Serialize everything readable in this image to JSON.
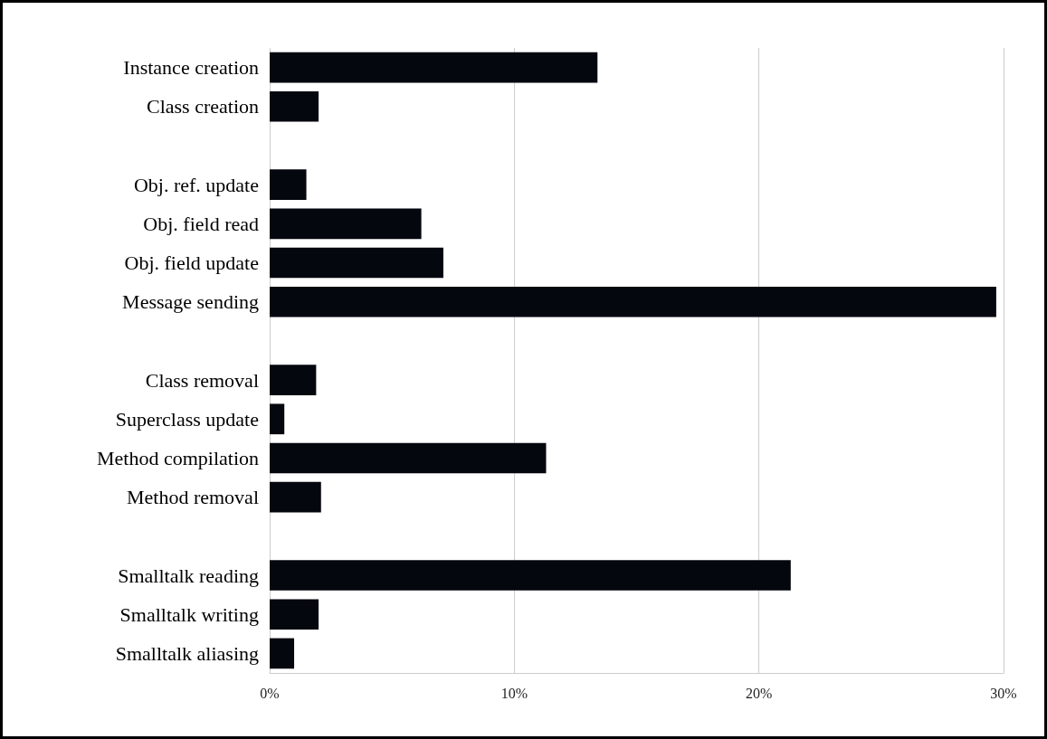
{
  "chart_data": {
    "type": "bar",
    "orientation": "horizontal",
    "categories": [
      "Instance creation",
      "Class creation",
      null,
      "Obj. ref. update",
      "Obj. field read",
      "Obj. field update",
      "Message sending",
      null,
      "Class removal",
      "Superclass update",
      "Method compilation",
      "Method removal",
      null,
      "Smalltalk reading",
      "Smalltalk writing",
      "Smalltalk aliasing"
    ],
    "values": [
      13.4,
      2.0,
      null,
      1.5,
      6.2,
      7.1,
      29.7,
      null,
      1.9,
      0.6,
      11.3,
      2.1,
      null,
      21.3,
      2.0,
      1.0
    ],
    "color": "#05070f",
    "xlim": [
      0,
      30
    ],
    "xticks": [
      {
        "value": 0,
        "label": "0%"
      },
      {
        "value": 10,
        "label": "10%"
      },
      {
        "value": 20,
        "label": "20%"
      },
      {
        "value": 30,
        "label": "30%"
      }
    ],
    "grid": "x"
  }
}
